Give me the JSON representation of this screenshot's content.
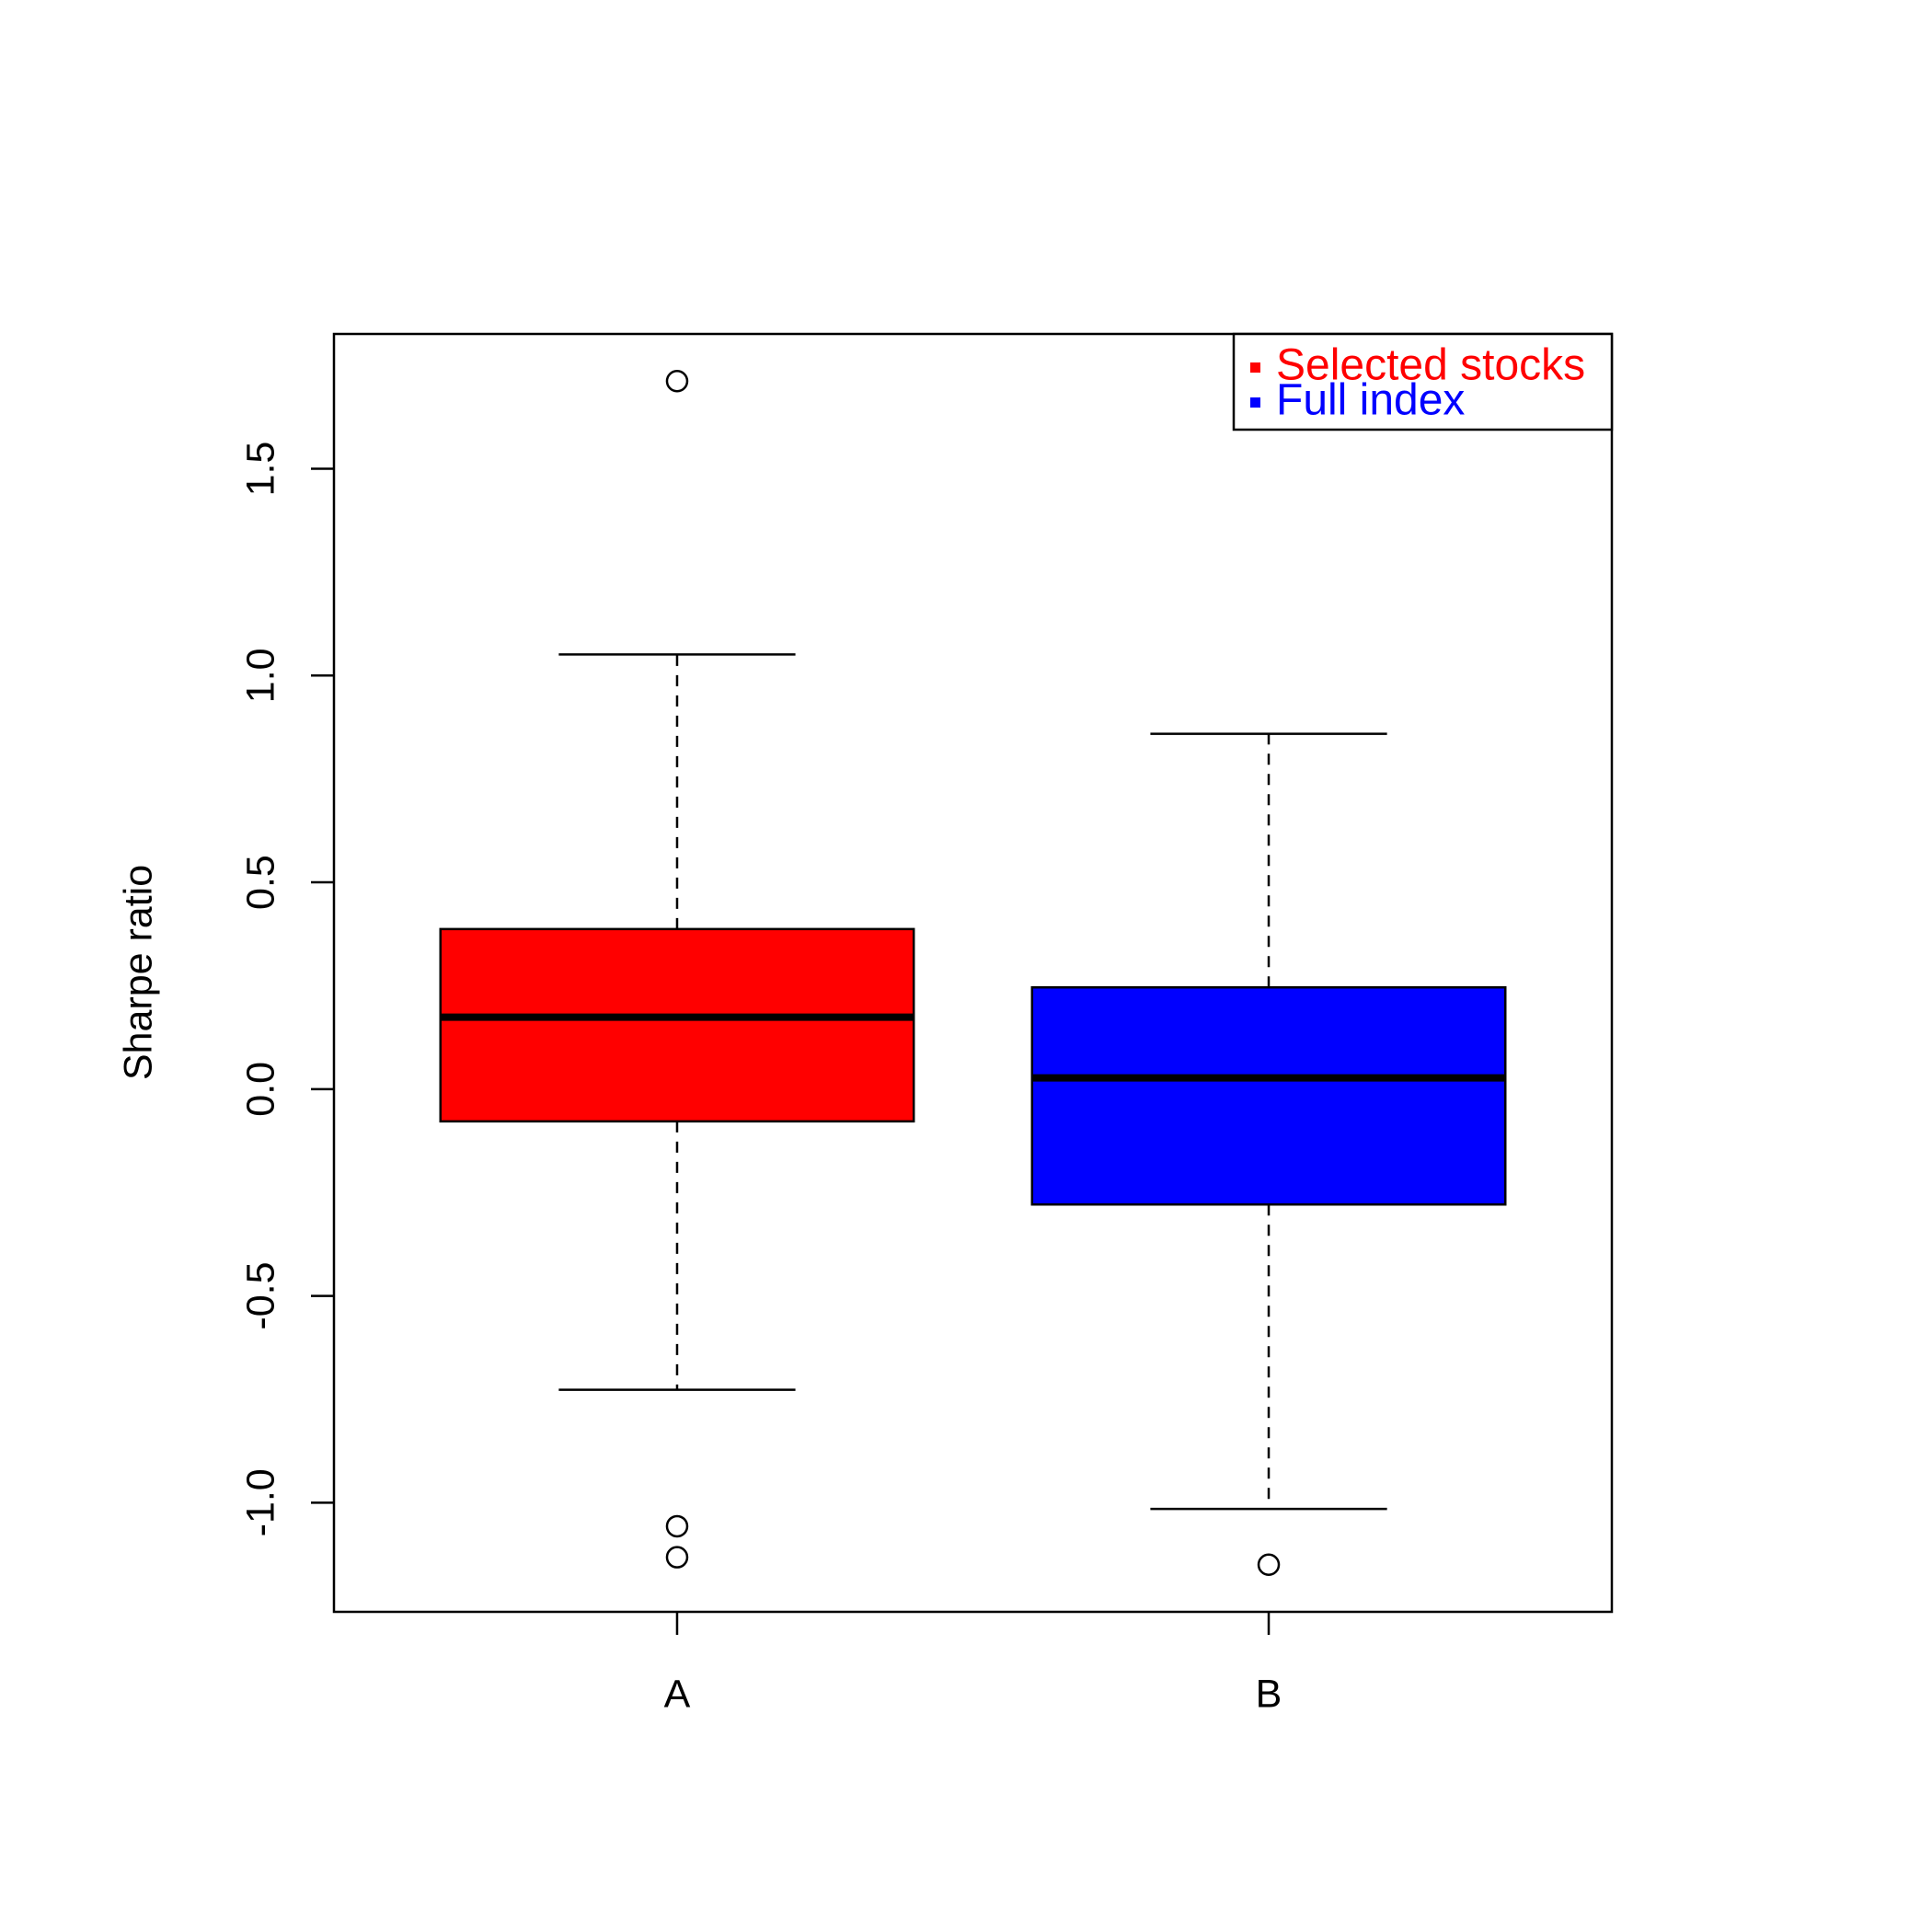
{
  "chart_data": {
    "type": "boxplot",
    "y_label": "Sharpe ratio",
    "categories": [
      "A",
      "B"
    ],
    "series": [
      {
        "name": "Selected stocks",
        "color": "#ff0000",
        "min": -0.727,
        "q1": -0.078,
        "median": 0.174,
        "q3": 0.387,
        "max": 1.051,
        "outliers": [
          1.712,
          -1.057,
          -1.132
        ]
      },
      {
        "name": "Full index",
        "color": "#0000ff",
        "min": -1.015,
        "q1": -0.279,
        "median": 0.027,
        "q3": 0.246,
        "max": 0.859,
        "outliers": [
          -1.15
        ]
      }
    ],
    "ylim": [
      -1.264,
      1.826
    ],
    "yticks": [
      {
        "value": -1.0,
        "label": "-1.0"
      },
      -0.5,
      {
        "value": 0.0,
        "label": "0.0"
      },
      0.5,
      {
        "value": 1.0,
        "label": "1.0"
      },
      1.5
    ],
    "legend": "topright"
  }
}
